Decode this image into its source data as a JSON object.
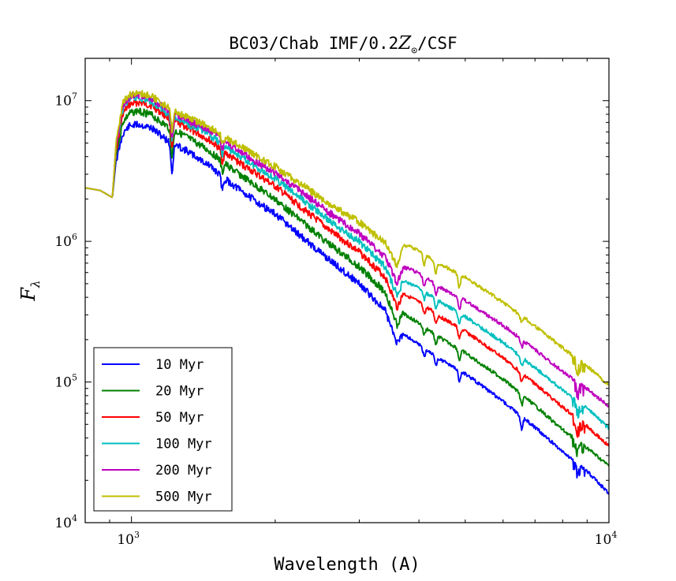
{
  "chart_data": {
    "type": "line",
    "title": "BC03/Chab IMF/0.2Z⊙/CSF",
    "title_parts": {
      "prefix": "BC03/Chab IMF/0.2",
      "symbol": "Z",
      "subscript": "⊙",
      "suffix": "/CSF"
    },
    "xlabel": "Wavelength (A)",
    "ylabel": "F",
    "ylabel_subscript": "λ",
    "xscale": "log",
    "yscale": "log",
    "xlim": [
      800,
      10000
    ],
    "ylim": [
      10000,
      20000000
    ],
    "x_ticks": [
      {
        "value": 1000,
        "base": "10",
        "exp": "3"
      },
      {
        "value": 10000,
        "base": "10",
        "exp": "4"
      }
    ],
    "y_ticks": [
      {
        "value": 10000,
        "base": "10",
        "exp": "4"
      },
      {
        "value": 100000,
        "base": "10",
        "exp": "5"
      },
      {
        "value": 1000000,
        "base": "10",
        "exp": "6"
      },
      {
        "value": 10000000,
        "base": "10",
        "exp": "7"
      }
    ],
    "grid": false,
    "legend_position": "lower-left",
    "x": [
      800,
      860,
      880,
      912,
      930,
      960,
      990,
      1030,
      1100,
      1200,
      1300,
      1450,
      1600,
      1800,
      2000,
      2300,
      2600,
      3000,
      3400,
      3600,
      3700,
      3800,
      4000,
      4500,
      5000,
      6000,
      7000,
      8000,
      9000,
      10000
    ],
    "series": [
      {
        "name": "10 Myr",
        "color": "#0000ff",
        "values": [
          2400000,
          2300000,
          2200000,
          2050000,
          4000000,
          6200000,
          7000000,
          7200000,
          6800000,
          5400000,
          4700000,
          3700000,
          2800000,
          2100000,
          1650000,
          1100000,
          780000,
          530000,
          340000,
          200000,
          230000,
          215000,
          190000,
          145000,
          118000,
          75000,
          49000,
          33000,
          24000,
          16500
        ],
        "features": [
          {
            "x": 1216,
            "depth": 0.62
          },
          {
            "x": 1550,
            "depth": 0.82
          },
          {
            "x": 4102,
            "depth": 0.88
          },
          {
            "x": 4340,
            "depth": 0.86
          },
          {
            "x": 4861,
            "depth": 0.84
          },
          {
            "x": 6563,
            "depth": 0.82
          },
          {
            "x": 8600,
            "depth": 0.86
          }
        ]
      },
      {
        "name": "20 Myr",
        "color": "#008000",
        "values": [
          2400000,
          2300000,
          2200000,
          2050000,
          4500000,
          7500000,
          8600000,
          9000000,
          8400000,
          6800000,
          5900000,
          4700000,
          3600000,
          2700000,
          2100000,
          1420000,
          1010000,
          700000,
          460000,
          270000,
          320000,
          300000,
          270000,
          205000,
          166000,
          108000,
          70000,
          47000,
          35000,
          26000
        ],
        "features": [
          {
            "x": 1216,
            "depth": 0.64
          },
          {
            "x": 1550,
            "depth": 0.84
          },
          {
            "x": 4102,
            "depth": 0.88
          },
          {
            "x": 4340,
            "depth": 0.86
          },
          {
            "x": 4861,
            "depth": 0.84
          },
          {
            "x": 6563,
            "depth": 0.84
          },
          {
            "x": 8600,
            "depth": 0.86
          }
        ]
      },
      {
        "name": "50 Myr",
        "color": "#ff0000",
        "values": [
          2400000,
          2300000,
          2200000,
          2050000,
          4900000,
          8600000,
          9900000,
          10300000,
          9800000,
          7900000,
          6900000,
          5600000,
          4300000,
          3300000,
          2600000,
          1780000,
          1270000,
          890000,
          590000,
          360000,
          440000,
          420000,
          380000,
          290000,
          236000,
          153000,
          100000,
          68000,
          50000,
          36000
        ],
        "features": [
          {
            "x": 1216,
            "depth": 0.66
          },
          {
            "x": 1550,
            "depth": 0.84
          },
          {
            "x": 4102,
            "depth": 0.88
          },
          {
            "x": 4340,
            "depth": 0.86
          },
          {
            "x": 4861,
            "depth": 0.84
          },
          {
            "x": 6563,
            "depth": 0.86
          },
          {
            "x": 8600,
            "depth": 0.86
          }
        ]
      },
      {
        "name": "100 Myr",
        "color": "#00bfbf",
        "values": [
          2400000,
          2300000,
          2200000,
          2050000,
          5100000,
          9400000,
          10800000,
          11200000,
          10500000,
          8500000,
          7400000,
          6100000,
          4800000,
          3700000,
          2950000,
          2050000,
          1480000,
          1050000,
          700000,
          440000,
          540000,
          520000,
          480000,
          370000,
          300000,
          196000,
          130000,
          90000,
          67000,
          48000
        ],
        "features": [
          {
            "x": 1216,
            "depth": 0.68
          },
          {
            "x": 1550,
            "depth": 0.86
          },
          {
            "x": 4102,
            "depth": 0.88
          },
          {
            "x": 4340,
            "depth": 0.86
          },
          {
            "x": 4861,
            "depth": 0.84
          },
          {
            "x": 6563,
            "depth": 0.87
          },
          {
            "x": 8600,
            "depth": 0.86
          }
        ]
      },
      {
        "name": "200 Myr",
        "color": "#bf00bf",
        "values": [
          2400000,
          2300000,
          2200000,
          2050000,
          5300000,
          9800000,
          11300000,
          11700000,
          11000000,
          8900000,
          7800000,
          6500000,
          5200000,
          4000000,
          3250000,
          2300000,
          1680000,
          1200000,
          820000,
          530000,
          670000,
          660000,
          610000,
          470000,
          390000,
          260000,
          175000,
          122000,
          92000,
          69000
        ],
        "features": [
          {
            "x": 1216,
            "depth": 0.7
          },
          {
            "x": 1550,
            "depth": 0.86
          },
          {
            "x": 4102,
            "depth": 0.86
          },
          {
            "x": 4340,
            "depth": 0.84
          },
          {
            "x": 4861,
            "depth": 0.82
          },
          {
            "x": 6563,
            "depth": 0.88
          },
          {
            "x": 8600,
            "depth": 0.86
          }
        ]
      },
      {
        "name": "500 Myr",
        "color": "#bfbf00",
        "values": [
          2400000,
          2300000,
          2200000,
          2050000,
          5500000,
          10200000,
          11700000,
          12100000,
          11400000,
          9300000,
          8200000,
          6900000,
          5600000,
          4400000,
          3600000,
          2600000,
          1950000,
          1450000,
          1030000,
          700000,
          960000,
          960000,
          880000,
          690000,
          570000,
          380000,
          257000,
          180000,
          133000,
          98000
        ],
        "features": [
          {
            "x": 1216,
            "depth": 0.72
          },
          {
            "x": 1550,
            "depth": 0.88
          },
          {
            "x": 4102,
            "depth": 0.84
          },
          {
            "x": 4340,
            "depth": 0.82
          },
          {
            "x": 4861,
            "depth": 0.8
          },
          {
            "x": 6563,
            "depth": 0.9
          },
          {
            "x": 8600,
            "depth": 0.88
          }
        ]
      }
    ]
  }
}
